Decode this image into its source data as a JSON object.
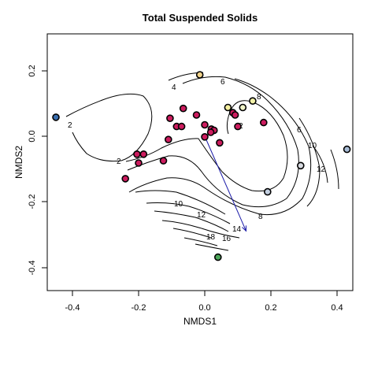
{
  "chart_data": {
    "type": "scatter",
    "title": "Total Suspended Solids",
    "xlabel": "NMDS1",
    "ylabel": "NMDS2",
    "xlim": [
      -0.48,
      0.45
    ],
    "ylim": [
      -0.48,
      0.3
    ],
    "xticks": [
      "-0.4",
      "-0.2",
      "0.0",
      "0.2",
      "0.4"
    ],
    "yticks": [
      "-0.4",
      "-0.2",
      "0.0",
      "0.2"
    ],
    "points": [
      {
        "x": -0.45,
        "y": 0.058,
        "color": "#3a6fb0"
      },
      {
        "x": -0.015,
        "y": 0.188,
        "color": "#f2d38a"
      },
      {
        "x": 0.07,
        "y": 0.088,
        "color": "#f5f0a0"
      },
      {
        "x": 0.115,
        "y": 0.088,
        "color": "#f0f4c8"
      },
      {
        "x": 0.145,
        "y": 0.108,
        "color": "#f3f2a8"
      },
      {
        "x": 0.43,
        "y": -0.04,
        "color": "#a8bcd6"
      },
      {
        "x": 0.29,
        "y": -0.09,
        "color": "#d7dae0"
      },
      {
        "x": 0.19,
        "y": -0.17,
        "color": "#c3cfe0"
      },
      {
        "x": 0.04,
        "y": -0.37,
        "color": "#4ca65a"
      },
      {
        "x": -0.24,
        "y": -0.13,
        "color": "#cc1c5e"
      },
      {
        "x": -0.205,
        "y": -0.055,
        "color": "#cc1c5e"
      },
      {
        "x": -0.185,
        "y": -0.055,
        "color": "#cc1c5e"
      },
      {
        "x": -0.2,
        "y": -0.082,
        "color": "#cc1c5e"
      },
      {
        "x": -0.125,
        "y": -0.075,
        "color": "#cc1c5e"
      },
      {
        "x": -0.11,
        "y": -0.01,
        "color": "#cc1c5e"
      },
      {
        "x": -0.105,
        "y": 0.055,
        "color": "#cc1c5e"
      },
      {
        "x": -0.085,
        "y": 0.03,
        "color": "#cc1c5e"
      },
      {
        "x": -0.07,
        "y": 0.03,
        "color": "#cc1c5e"
      },
      {
        "x": -0.065,
        "y": 0.085,
        "color": "#cc1c5e"
      },
      {
        "x": -0.025,
        "y": 0.065,
        "color": "#cc1c5e"
      },
      {
        "x": 0.0,
        "y": 0.035,
        "color": "#cc1c5e"
      },
      {
        "x": 0.0,
        "y": -0.002,
        "color": "#cc1c5e"
      },
      {
        "x": 0.02,
        "y": 0.022,
        "color": "#cc1c5e"
      },
      {
        "x": 0.028,
        "y": 0.018,
        "color": "#cc1c5e"
      },
      {
        "x": 0.018,
        "y": 0.012,
        "color": "#cc1c5e"
      },
      {
        "x": 0.045,
        "y": -0.02,
        "color": "#cc1c5e"
      },
      {
        "x": 0.085,
        "y": 0.072,
        "color": "#cc1c5e"
      },
      {
        "x": 0.092,
        "y": 0.065,
        "color": "#cc1c5e"
      },
      {
        "x": 0.1,
        "y": 0.03,
        "color": "#cc1c5e"
      },
      {
        "x": 0.178,
        "y": 0.042,
        "color": "#cc1c5e"
      }
    ],
    "arrow": {
      "from": [
        0.0,
        0.0
      ],
      "to": [
        0.125,
        -0.29
      ],
      "color": "#1a1aa8"
    },
    "contour_labels": [
      "2",
      "2",
      "2",
      "4",
      "6",
      "6",
      "8",
      "8",
      "10",
      "10",
      "12",
      "12",
      "14",
      "16",
      "18"
    ]
  }
}
